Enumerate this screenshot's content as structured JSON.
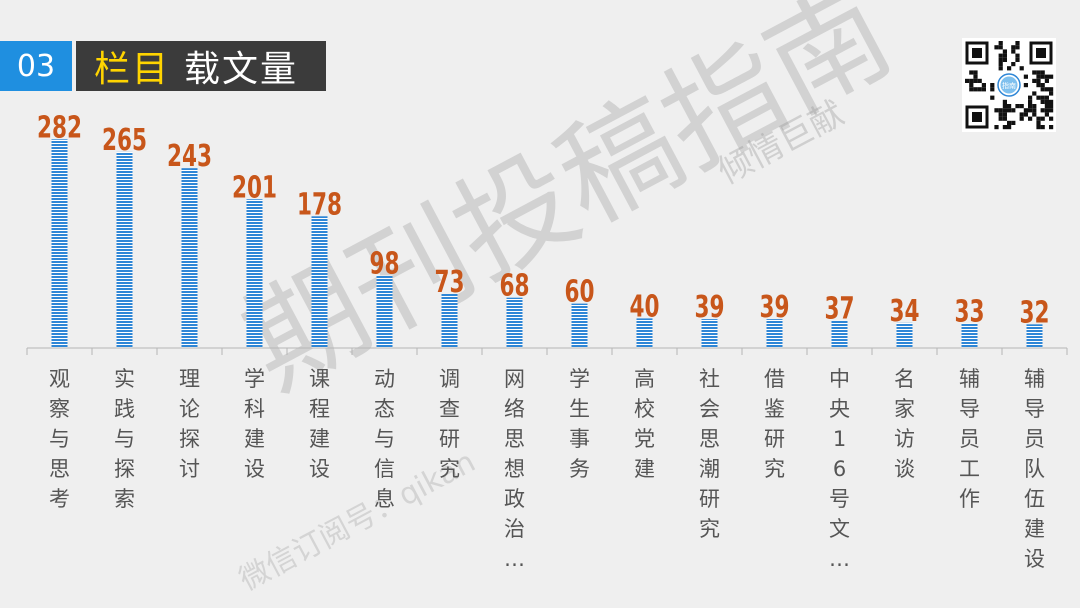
{
  "header": {
    "number": "03",
    "title_highlight": "栏目",
    "title_rest": "载文量"
  },
  "watermark": {
    "main": "期刊投稿指南",
    "corner": "倾情巨献",
    "sub": "微信订阅号：qikan"
  },
  "qr": {
    "badge_text": "指南"
  },
  "colors": {
    "bar": "#2e86d6",
    "value_label": "#c8561a",
    "category_label": "#555555",
    "axis": "#b5b5b5"
  },
  "chart_data": {
    "type": "bar",
    "categories": [
      "观察与思考",
      "实践与探索",
      "理论探讨",
      "学科建设",
      "课程建设",
      "动态与信息",
      "调查研究",
      "网络思想政治…",
      "学生事务",
      "高校党建",
      "社会思潮研究",
      "借鉴研究",
      "中央16号文…",
      "名家访谈",
      "辅导员工作",
      "辅导员队伍建设"
    ],
    "values": [
      282,
      265,
      243,
      201,
      178,
      98,
      73,
      68,
      60,
      40,
      39,
      39,
      37,
      34,
      33,
      32
    ],
    "ylim": [
      0,
      300
    ],
    "legend": "none",
    "grid": false
  }
}
